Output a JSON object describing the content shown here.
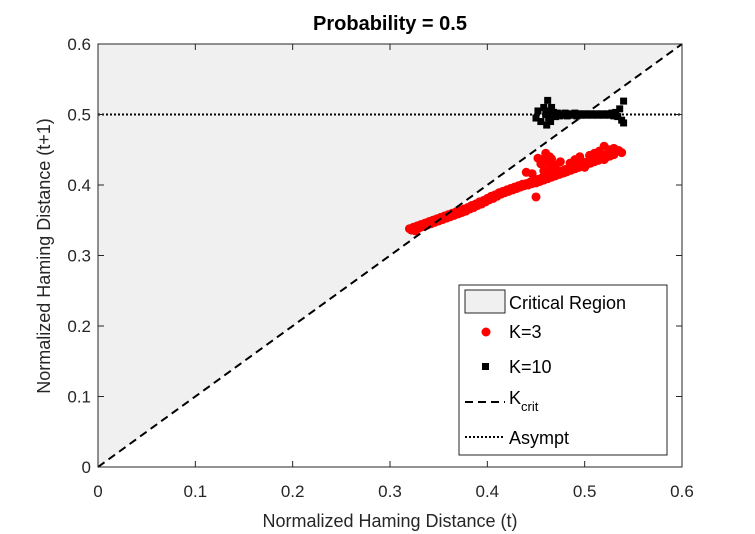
{
  "chart_data": {
    "type": "scatter",
    "title": "Probability = 0.5",
    "xlabel": "Normalized Haming Distance (t)",
    "ylabel": "Normalized Haming Distance (t+1)",
    "xlim": [
      0,
      0.6
    ],
    "ylim": [
      0,
      0.6
    ],
    "xticks": [
      "0",
      "0.1",
      "0.2",
      "0.3",
      "0.4",
      "0.5",
      "0.6"
    ],
    "yticks": [
      "0",
      "0.1",
      "0.2",
      "0.3",
      "0.4",
      "0.5",
      "0.6"
    ],
    "grid": false,
    "legend_position": "bottom-right",
    "regions": [
      {
        "name": "Critical Region",
        "description": "area above y = x",
        "color": "#f0f0f0"
      }
    ],
    "series": [
      {
        "name": "K=3",
        "marker": "circle",
        "color": "#ff0000",
        "points": [
          [
            0.32,
            0.338
          ],
          [
            0.322,
            0.336
          ],
          [
            0.324,
            0.34
          ],
          [
            0.326,
            0.335
          ],
          [
            0.328,
            0.342
          ],
          [
            0.33,
            0.339
          ],
          [
            0.332,
            0.344
          ],
          [
            0.334,
            0.341
          ],
          [
            0.336,
            0.346
          ],
          [
            0.338,
            0.343
          ],
          [
            0.34,
            0.348
          ],
          [
            0.342,
            0.345
          ],
          [
            0.344,
            0.35
          ],
          [
            0.346,
            0.347
          ],
          [
            0.348,
            0.352
          ],
          [
            0.35,
            0.349
          ],
          [
            0.352,
            0.354
          ],
          [
            0.354,
            0.351
          ],
          [
            0.356,
            0.356
          ],
          [
            0.358,
            0.353
          ],
          [
            0.36,
            0.358
          ],
          [
            0.362,
            0.355
          ],
          [
            0.364,
            0.36
          ],
          [
            0.366,
            0.357
          ],
          [
            0.368,
            0.362
          ],
          [
            0.37,
            0.359
          ],
          [
            0.372,
            0.364
          ],
          [
            0.374,
            0.361
          ],
          [
            0.376,
            0.366
          ],
          [
            0.378,
            0.363
          ],
          [
            0.38,
            0.368
          ],
          [
            0.382,
            0.366
          ],
          [
            0.384,
            0.371
          ],
          [
            0.386,
            0.368
          ],
          [
            0.388,
            0.373
          ],
          [
            0.39,
            0.371
          ],
          [
            0.392,
            0.376
          ],
          [
            0.394,
            0.373
          ],
          [
            0.396,
            0.378
          ],
          [
            0.398,
            0.376
          ],
          [
            0.4,
            0.381
          ],
          [
            0.402,
            0.379
          ],
          [
            0.404,
            0.384
          ],
          [
            0.406,
            0.381
          ],
          [
            0.408,
            0.386
          ],
          [
            0.41,
            0.384
          ],
          [
            0.412,
            0.389
          ],
          [
            0.414,
            0.387
          ],
          [
            0.416,
            0.391
          ],
          [
            0.418,
            0.389
          ],
          [
            0.42,
            0.393
          ],
          [
            0.422,
            0.391
          ],
          [
            0.424,
            0.395
          ],
          [
            0.426,
            0.393
          ],
          [
            0.428,
            0.397
          ],
          [
            0.43,
            0.395
          ],
          [
            0.432,
            0.399
          ],
          [
            0.434,
            0.397
          ],
          [
            0.436,
            0.401
          ],
          [
            0.438,
            0.399
          ],
          [
            0.44,
            0.402
          ],
          [
            0.442,
            0.4
          ],
          [
            0.444,
            0.404
          ],
          [
            0.446,
            0.402
          ],
          [
            0.448,
            0.406
          ],
          [
            0.45,
            0.403
          ],
          [
            0.452,
            0.408
          ],
          [
            0.454,
            0.405
          ],
          [
            0.456,
            0.41
          ],
          [
            0.458,
            0.407
          ],
          [
            0.46,
            0.412
          ],
          [
            0.462,
            0.409
          ],
          [
            0.464,
            0.414
          ],
          [
            0.466,
            0.411
          ],
          [
            0.468,
            0.416
          ],
          [
            0.47,
            0.413
          ],
          [
            0.472,
            0.418
          ],
          [
            0.474,
            0.415
          ],
          [
            0.476,
            0.42
          ],
          [
            0.478,
            0.417
          ],
          [
            0.48,
            0.422
          ],
          [
            0.482,
            0.419
          ],
          [
            0.484,
            0.424
          ],
          [
            0.486,
            0.421
          ],
          [
            0.488,
            0.426
          ],
          [
            0.49,
            0.423
          ],
          [
            0.492,
            0.428
          ],
          [
            0.494,
            0.425
          ],
          [
            0.496,
            0.43
          ],
          [
            0.498,
            0.427
          ],
          [
            0.5,
            0.432
          ],
          [
            0.502,
            0.429
          ],
          [
            0.504,
            0.434
          ],
          [
            0.506,
            0.431
          ],
          [
            0.508,
            0.436
          ],
          [
            0.51,
            0.433
          ],
          [
            0.512,
            0.438
          ],
          [
            0.514,
            0.435
          ],
          [
            0.516,
            0.44
          ],
          [
            0.518,
            0.437
          ],
          [
            0.52,
            0.442
          ],
          [
            0.522,
            0.439
          ],
          [
            0.524,
            0.444
          ],
          [
            0.526,
            0.441
          ],
          [
            0.528,
            0.446
          ],
          [
            0.53,
            0.443
          ],
          [
            0.455,
            0.43
          ],
          [
            0.46,
            0.432
          ],
          [
            0.465,
            0.425
          ],
          [
            0.458,
            0.42
          ],
          [
            0.452,
            0.438
          ],
          [
            0.462,
            0.441
          ],
          [
            0.47,
            0.428
          ],
          [
            0.475,
            0.433
          ],
          [
            0.48,
            0.418
          ],
          [
            0.485,
            0.431
          ],
          [
            0.49,
            0.436
          ],
          [
            0.495,
            0.44
          ],
          [
            0.5,
            0.425
          ],
          [
            0.505,
            0.442
          ],
          [
            0.51,
            0.445
          ],
          [
            0.515,
            0.448
          ],
          [
            0.52,
            0.436
          ],
          [
            0.525,
            0.45
          ],
          [
            0.53,
            0.452
          ],
          [
            0.535,
            0.449
          ],
          [
            0.538,
            0.446
          ],
          [
            0.46,
            0.445
          ],
          [
            0.464,
            0.44
          ],
          [
            0.44,
            0.418
          ],
          [
            0.446,
            0.416
          ],
          [
            0.45,
            0.383
          ],
          [
            0.466,
            0.437
          ],
          [
            0.456,
            0.436
          ],
          [
            0.52,
            0.455
          ],
          [
            0.527,
            0.447
          ]
        ]
      },
      {
        "name": "K=10",
        "marker": "square",
        "color": "#000000",
        "points": [
          [
            0.45,
            0.495
          ],
          [
            0.452,
            0.505
          ],
          [
            0.455,
            0.49
          ],
          [
            0.458,
            0.51
          ],
          [
            0.46,
            0.5
          ],
          [
            0.461,
            0.485
          ],
          [
            0.462,
            0.52
          ],
          [
            0.463,
            0.495
          ],
          [
            0.464,
            0.505
          ],
          [
            0.465,
            0.49
          ],
          [
            0.466,
            0.51
          ],
          [
            0.467,
            0.5
          ],
          [
            0.468,
            0.503
          ],
          [
            0.47,
            0.497
          ],
          [
            0.472,
            0.502
          ],
          [
            0.474,
            0.498
          ],
          [
            0.476,
            0.501
          ],
          [
            0.478,
            0.499
          ],
          [
            0.48,
            0.502
          ],
          [
            0.482,
            0.498
          ],
          [
            0.484,
            0.501
          ],
          [
            0.486,
            0.499
          ],
          [
            0.488,
            0.5
          ],
          [
            0.49,
            0.502
          ],
          [
            0.492,
            0.498
          ],
          [
            0.494,
            0.501
          ],
          [
            0.496,
            0.499
          ],
          [
            0.498,
            0.5
          ],
          [
            0.5,
            0.501
          ],
          [
            0.502,
            0.499
          ],
          [
            0.504,
            0.5
          ],
          [
            0.506,
            0.501
          ],
          [
            0.508,
            0.499
          ],
          [
            0.51,
            0.5
          ],
          [
            0.512,
            0.501
          ],
          [
            0.514,
            0.499
          ],
          [
            0.516,
            0.5
          ],
          [
            0.518,
            0.501
          ],
          [
            0.52,
            0.499
          ],
          [
            0.522,
            0.5
          ],
          [
            0.524,
            0.501
          ],
          [
            0.526,
            0.499
          ],
          [
            0.528,
            0.502
          ],
          [
            0.53,
            0.498
          ],
          [
            0.532,
            0.503
          ],
          [
            0.534,
            0.497
          ],
          [
            0.536,
            0.508
          ],
          [
            0.538,
            0.492
          ],
          [
            0.54,
            0.519
          ],
          [
            0.54,
            0.488
          ]
        ]
      }
    ],
    "reference_lines": [
      {
        "name": "K",
        "name_subscript": "crit",
        "style": "dashed",
        "color": "#000000",
        "from": [
          0,
          0
        ],
        "to": [
          0.6,
          0.6
        ]
      },
      {
        "name": "Asympt",
        "style": "dotted",
        "color": "#000000",
        "y": 0.5
      }
    ]
  }
}
